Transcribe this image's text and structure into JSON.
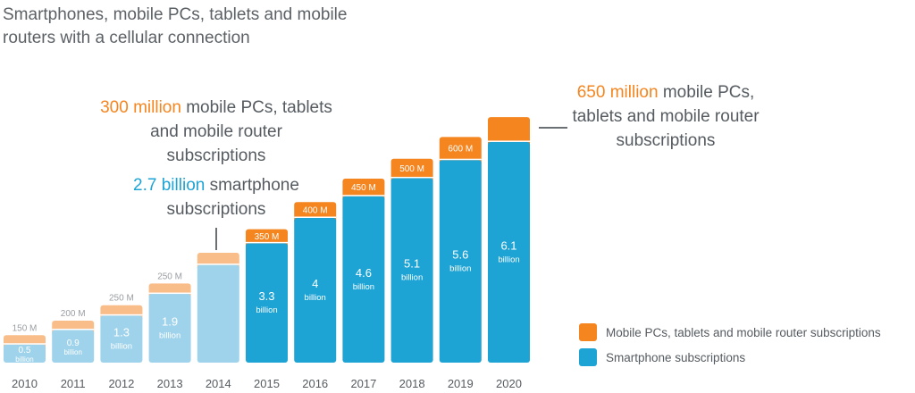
{
  "title": "Smartphones, mobile PCs, tablets and mobile routers with a cellular connection",
  "annotations": [
    {
      "highlight": "300 million",
      "text": " mobile PCs, tablets and mobile router subscriptions"
    },
    {
      "highlight": "2.7 billion",
      "text": " smartphone subscriptions"
    },
    {
      "highlight": "650 million",
      "text": " mobile PCs, tablets and mobile router subscriptions"
    }
  ],
  "colors": {
    "orange": "#f5851f",
    "blue": "#1ea3d5",
    "orange_light": "#f9bd8a",
    "blue_light": "#9fd3ec",
    "text": "#555b60"
  },
  "chart_data": {
    "type": "bar",
    "stacked": true,
    "categories": [
      "2010",
      "2011",
      "2012",
      "2013",
      "2014",
      "2015",
      "2016",
      "2017",
      "2018",
      "2019",
      "2020"
    ],
    "series": [
      {
        "name": "Smartphone subscriptions",
        "values": [
          0.5,
          0.9,
          1.3,
          1.9,
          2.7,
          3.3,
          4,
          4.6,
          5.1,
          5.6,
          6.1
        ],
        "value_labels": [
          "0.5",
          "0.9",
          "1.3",
          "1.9",
          "",
          "3.3",
          "4",
          "4.6",
          "5.1",
          "5.6",
          "6.1"
        ],
        "unit_label": "billion"
      },
      {
        "name": "Mobile PCs, tablets and mobile router subscriptions",
        "values": [
          0.15,
          0.2,
          0.25,
          0.25,
          0.3,
          0.35,
          0.4,
          0.45,
          0.5,
          0.6,
          0.65
        ],
        "value_labels": [
          "150 M",
          "200 M",
          "250 M",
          "250 M",
          "",
          "350 M",
          "400 M",
          "450 M",
          "500 M",
          "600 M",
          ""
        ]
      }
    ],
    "historical_categories": [
      "2010",
      "2011",
      "2012",
      "2013",
      "2014"
    ],
    "legend_position": "bottom-right",
    "grid": false,
    "ylim": [
      0,
      7
    ]
  }
}
